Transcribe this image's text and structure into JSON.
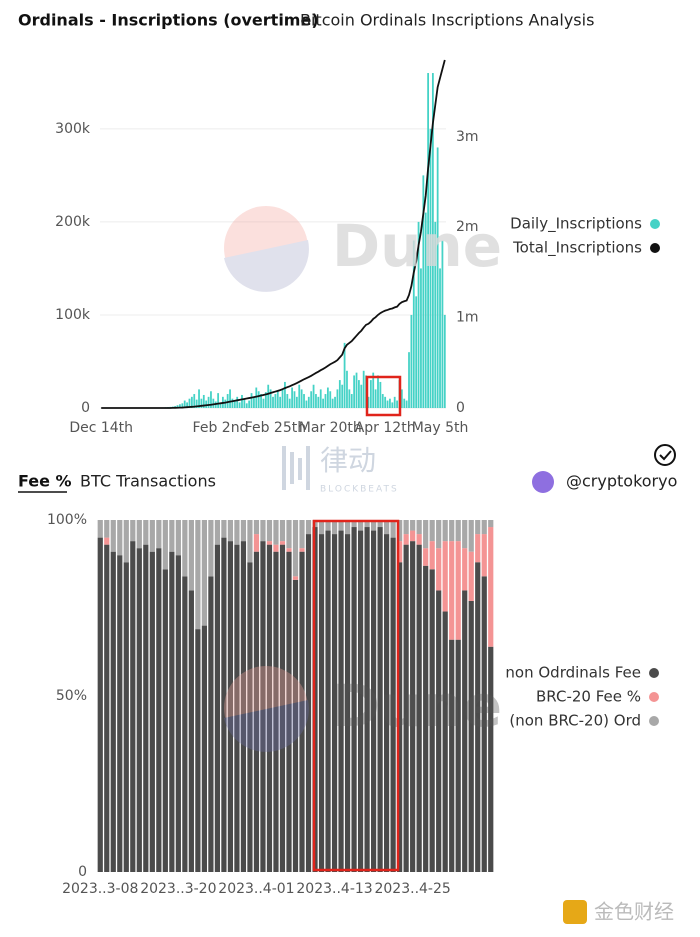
{
  "chart_data": [
    {
      "type": "bar",
      "title": "Ordinals - Inscriptions (overtime)",
      "subtitle": "Bitcoin Ordinals Inscriptions Analysis",
      "grid": true,
      "categories": [
        "Dec 14th",
        null,
        null,
        null,
        null,
        null,
        null,
        null,
        null,
        null,
        null,
        null,
        null,
        null,
        null,
        null,
        null,
        null,
        null,
        null,
        null,
        null,
        null,
        null,
        null,
        null,
        null,
        null,
        null,
        null,
        null,
        null,
        null,
        null,
        null,
        null,
        null,
        null,
        null,
        null,
        null,
        null,
        null,
        null,
        null,
        null,
        null,
        null,
        null,
        null,
        "Feb 2nd",
        null,
        null,
        null,
        null,
        null,
        null,
        null,
        null,
        null,
        null,
        null,
        null,
        null,
        null,
        null,
        null,
        null,
        null,
        null,
        null,
        null,
        null,
        "Feb 25th",
        null,
        null,
        null,
        null,
        null,
        null,
        null,
        null,
        null,
        null,
        null,
        null,
        null,
        null,
        null,
        null,
        null,
        null,
        null,
        null,
        null,
        null,
        "Mar 20th",
        null,
        null,
        null,
        null,
        null,
        null,
        null,
        null,
        null,
        null,
        null,
        null,
        null,
        null,
        null,
        null,
        null,
        null,
        null,
        null,
        null,
        null,
        "Apr 12th",
        null,
        null,
        null,
        null,
        null,
        null,
        null,
        null,
        null,
        null,
        null,
        null,
        null,
        null,
        null,
        null,
        null,
        null,
        null,
        null,
        null,
        null,
        "May 5th",
        null,
        null
      ],
      "ylim": [
        0,
        374000
      ],
      "yticks": [
        0,
        {
          "value": 100000,
          "label": "100k"
        },
        {
          "value": 200000,
          "label": "200k"
        },
        {
          "value": 300000,
          "label": "300k"
        }
      ],
      "y2lim": [
        0,
        3850000
      ],
      "y2ticks": [
        0,
        {
          "value": 1000000,
          "label": "1m"
        },
        {
          "value": 2000000,
          "label": "2m"
        },
        {
          "value": 3000000,
          "label": "3m"
        }
      ],
      "series": [
        {
          "name": "Daily_Inscriptions",
          "color": "#45d2c6",
          "values": [
            0,
            0,
            0,
            0,
            0,
            0,
            0,
            0,
            0,
            0,
            0,
            0,
            0,
            0,
            0,
            0,
            0,
            0,
            0,
            0,
            100,
            200,
            300,
            300,
            500,
            400,
            600,
            800,
            1000,
            1200,
            1500,
            2000,
            3000,
            4000,
            5000,
            8000,
            6000,
            10000,
            12000,
            15000,
            9000,
            20000,
            10000,
            14000,
            8000,
            12000,
            18000,
            10000,
            7000,
            16000,
            5000,
            12000,
            9000,
            15000,
            20000,
            10000,
            8000,
            12000,
            6000,
            14000,
            10000,
            5000,
            8000,
            16000,
            12000,
            22000,
            18000,
            15000,
            10000,
            17000,
            25000,
            20000,
            12000,
            15000,
            18000,
            12000,
            20000,
            28000,
            15000,
            10000,
            22000,
            18000,
            12000,
            25000,
            20000,
            15000,
            8000,
            12000,
            18000,
            25000,
            15000,
            12000,
            20000,
            10000,
            15000,
            22000,
            18000,
            10000,
            12000,
            20000,
            30000,
            25000,
            70000,
            40000,
            20000,
            15000,
            35000,
            38000,
            30000,
            25000,
            40000,
            35000,
            12000,
            30000,
            38000,
            20000,
            35000,
            28000,
            15000,
            12000,
            8000,
            10000,
            6000,
            12000,
            8000,
            30000,
            20000,
            10000,
            8000,
            60000,
            100000,
            180000,
            120000,
            200000,
            150000,
            250000,
            210000,
            360000,
            300000,
            360000,
            200000,
            280000,
            150000,
            180000,
            100000
          ]
        },
        {
          "name": "Total_Inscriptions",
          "color": "#111111",
          "type": "line",
          "axis": "y2",
          "values": [
            0,
            0,
            0,
            0,
            0,
            0,
            0,
            0,
            0,
            0,
            0,
            0,
            0,
            0,
            0,
            0,
            0,
            0,
            0,
            0,
            0,
            0,
            0,
            0,
            0,
            0,
            0,
            0,
            0,
            0,
            1000,
            2000,
            3000,
            4000,
            5000,
            7000,
            9000,
            11000,
            13000,
            15000,
            18000,
            21000,
            24000,
            27000,
            30000,
            33000,
            36000,
            40000,
            44000,
            48000,
            52000,
            56000,
            60000,
            65000,
            70000,
            75000,
            80000,
            85000,
            90000,
            95000,
            100000,
            105000,
            110000,
            115000,
            120000,
            126000,
            132000,
            138000,
            144000,
            150000,
            158000,
            166000,
            174000,
            182000,
            190000,
            198000,
            208000,
            220000,
            230000,
            240000,
            252000,
            264000,
            276000,
            290000,
            304000,
            318000,
            330000,
            342000,
            356000,
            372000,
            388000,
            402000,
            418000,
            432000,
            448000,
            466000,
            484000,
            498000,
            512000,
            530000,
            560000,
            590000,
            660000,
            700000,
            720000,
            740000,
            770000,
            800000,
            830000,
            855000,
            890000,
            920000,
            932000,
            955000,
            985000,
            1005000,
            1030000,
            1050000,
            1065000,
            1077000,
            1085000,
            1095000,
            1101000,
            1113000,
            1121000,
            1151000,
            1171000,
            1181000,
            1189000,
            1250000,
            1350000,
            1500000,
            1620000,
            1800000,
            1950000,
            2150000,
            2350000,
            2650000,
            2900000,
            3150000,
            3350000,
            3550000,
            3650000,
            3750000,
            3850000
          ]
        }
      ]
    },
    {
      "type": "bar",
      "stacked": true,
      "title": "Fee %",
      "subtitle": "BTC Transactions",
      "grid": false,
      "categories": [
        "2023..3-08",
        null,
        null,
        null,
        null,
        null,
        null,
        null,
        null,
        null,
        null,
        null,
        "2023..3-20",
        null,
        null,
        null,
        null,
        null,
        null,
        null,
        null,
        null,
        null,
        null,
        "2023..4-01",
        null,
        null,
        null,
        null,
        null,
        null,
        null,
        null,
        null,
        null,
        null,
        "2023..4-13",
        null,
        null,
        null,
        null,
        null,
        null,
        null,
        null,
        null,
        null,
        null,
        "2023..4-25",
        null,
        null,
        null,
        null,
        null,
        null,
        null,
        null,
        null,
        null,
        null,
        null
      ],
      "ylim": [
        0,
        100
      ],
      "yticks": [
        0,
        {
          "value": 50,
          "label": "50%"
        },
        {
          "value": 100,
          "label": "100%"
        }
      ],
      "series": [
        {
          "name": "non Odrdinals Fee",
          "color": "#4b4b4b",
          "values": [
            95,
            93,
            91,
            90,
            88,
            94,
            92,
            93,
            91,
            92,
            86,
            91,
            90,
            84,
            80,
            69,
            70,
            84,
            93,
            95,
            94,
            93,
            94,
            88,
            91,
            94,
            93,
            91,
            93,
            91,
            83,
            91,
            96,
            98,
            96,
            97,
            96,
            97,
            96,
            98,
            97,
            98,
            97,
            98,
            96,
            95,
            88,
            93,
            94,
            93,
            87,
            86,
            80,
            74,
            66,
            66,
            80,
            77,
            88,
            84,
            64
          ]
        },
        {
          "name": "BRC-20 Fee %",
          "color": "#f49494",
          "values": [
            0,
            2,
            0,
            0,
            0,
            0,
            0,
            0,
            0,
            0,
            0,
            0,
            0,
            0,
            0,
            0,
            0,
            0,
            0,
            0,
            0,
            0,
            0,
            0,
            5,
            0,
            1,
            2,
            1,
            1,
            1,
            1,
            0,
            0,
            0,
            0,
            0,
            0,
            0,
            0,
            0,
            0,
            0,
            0,
            0,
            0,
            6,
            3,
            3,
            3,
            5,
            8,
            12,
            20,
            28,
            28,
            12,
            14,
            8,
            12,
            34
          ]
        },
        {
          "name": "(non BRC-20) Ord",
          "color": "#a8a8a8",
          "values": [
            5,
            5,
            9,
            10,
            12,
            6,
            8,
            7,
            9,
            8,
            14,
            9,
            10,
            16,
            20,
            31,
            30,
            16,
            7,
            5,
            6,
            7,
            6,
            12,
            4,
            6,
            6,
            7,
            6,
            8,
            16,
            8,
            4,
            2,
            4,
            3,
            4,
            3,
            4,
            2,
            3,
            2,
            3,
            2,
            4,
            5,
            6,
            4,
            3,
            4,
            8,
            6,
            8,
            6,
            6,
            6,
            8,
            9,
            4,
            4,
            2
          ]
        }
      ]
    }
  ],
  "author": "@cryptokoryo",
  "watermarks": {
    "dune": "Dune",
    "blockbeats_cn": "律动",
    "blockbeats": "BLOCKBEATS",
    "jinse": "金色财经"
  }
}
